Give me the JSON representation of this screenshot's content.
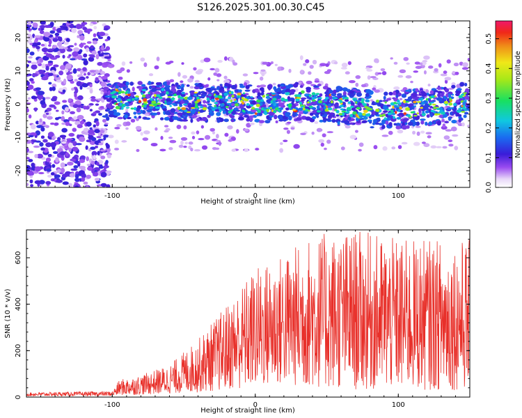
{
  "title": "S126.2025.301.00.30.C45",
  "chart_data": [
    {
      "type": "heatmap",
      "id": "spectrogram",
      "xlabel": "Height of straight line (km)",
      "ylabel": "Frequency (Hz)",
      "xlim": [
        -160,
        150
      ],
      "ylim": [
        -25,
        25
      ],
      "xticks": [
        -100,
        0,
        100
      ],
      "yticks": [
        -20,
        -10,
        0,
        10,
        20
      ],
      "colorbar": {
        "label": "Normalized spectral amplitude",
        "range": [
          0.0,
          0.56
        ],
        "ticks": [
          0.0,
          0.1,
          0.2,
          0.3,
          0.4,
          0.5
        ],
        "tick_labels": [
          "0.0",
          "0.1",
          "0.2",
          "0.3",
          "0.4",
          "0.5"
        ]
      },
      "description_of_signal": {
        "noise_region_x": [
          -160,
          -102
        ],
        "signal_band_center_hz": 0,
        "signal_band_halfwidth_hz": 5,
        "signal_start_km": -105
      }
    },
    {
      "type": "line",
      "id": "snr",
      "xlabel": "Height of straight line (km)",
      "ylabel": "SNR (10 * v/v)",
      "xlim": [
        -160,
        150
      ],
      "ylim": [
        0,
        720
      ],
      "xticks": [
        -100,
        0,
        100
      ],
      "yticks": [
        0,
        200,
        400,
        600
      ],
      "color": "#e8302a",
      "envelope": [
        {
          "x": -160,
          "low": 5,
          "high": 20
        },
        {
          "x": -100,
          "low": 5,
          "high": 25
        },
        {
          "x": -95,
          "low": 8,
          "high": 75
        },
        {
          "x": -80,
          "low": 10,
          "high": 95
        },
        {
          "x": -60,
          "low": 15,
          "high": 140
        },
        {
          "x": -40,
          "low": 20,
          "high": 250
        },
        {
          "x": -20,
          "low": 30,
          "high": 400
        },
        {
          "x": 0,
          "low": 40,
          "high": 560
        },
        {
          "x": 20,
          "low": 50,
          "high": 620
        },
        {
          "x": 40,
          "low": 40,
          "high": 700
        },
        {
          "x": 70,
          "low": 30,
          "high": 720
        },
        {
          "x": 100,
          "low": 30,
          "high": 680
        },
        {
          "x": 150,
          "low": 30,
          "high": 680
        }
      ]
    }
  ]
}
